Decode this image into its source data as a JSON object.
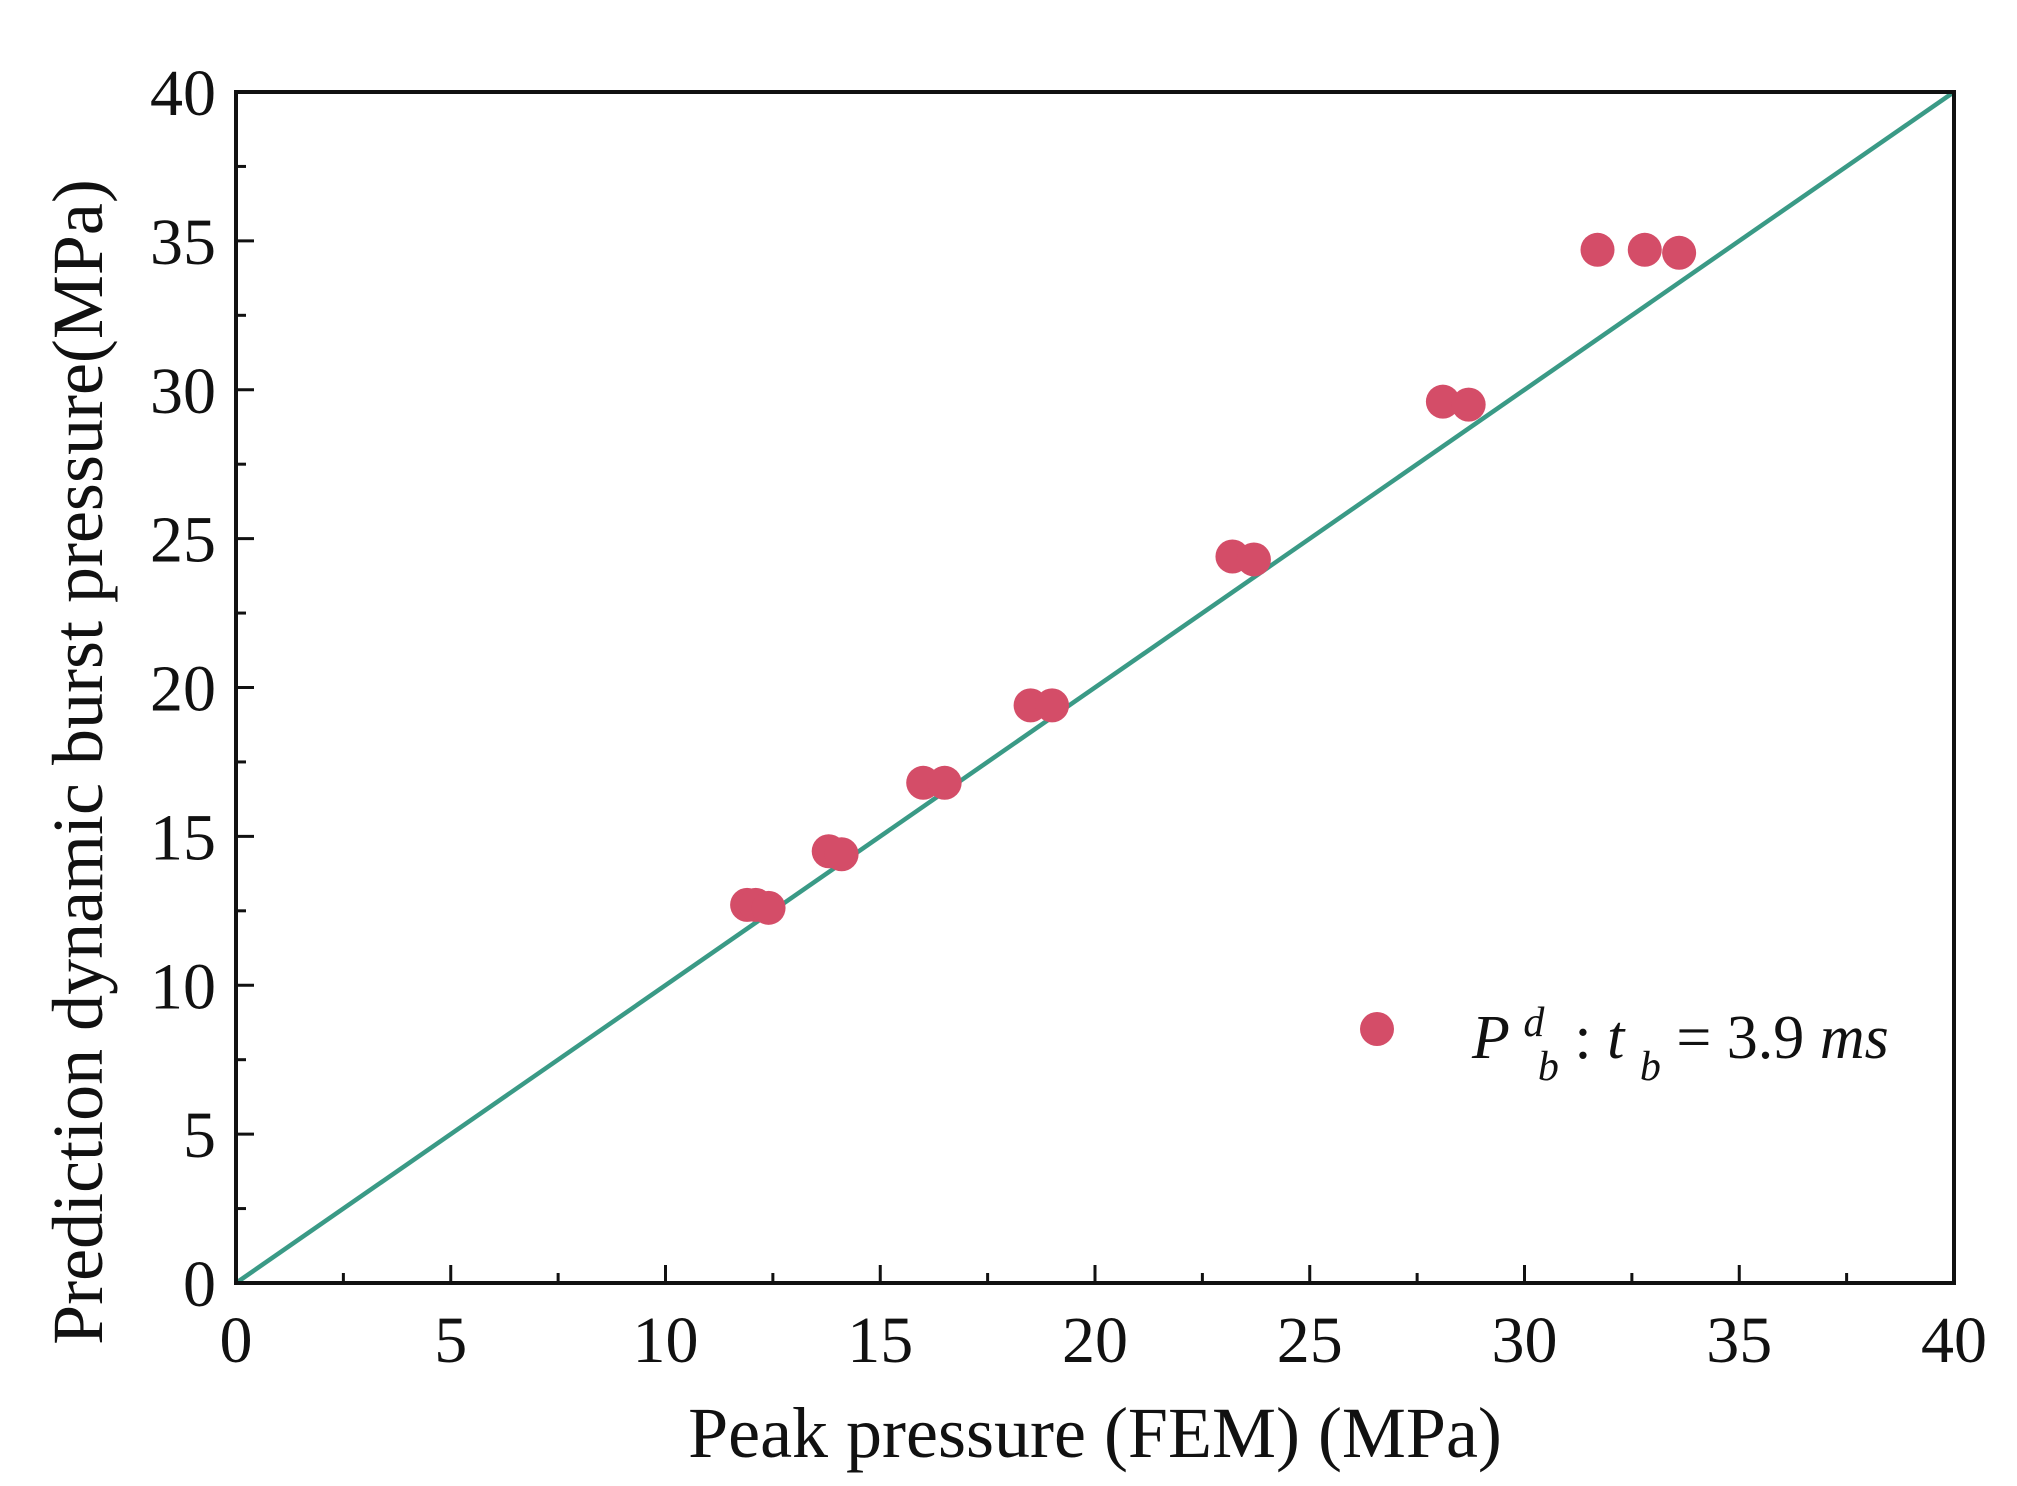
{
  "chart_data": {
    "type": "scatter",
    "title": "",
    "xlabel": "Peak pressure (FEM) (MPa)",
    "ylabel": "Prediction dynamic burst pressure(MPa)",
    "xlim": [
      0,
      40
    ],
    "ylim": [
      0,
      40
    ],
    "x_major_ticks": [
      0,
      5,
      10,
      15,
      20,
      25,
      30,
      35,
      40
    ],
    "x_tick_labels": [
      "0",
      "5",
      "10",
      "15",
      "20",
      "25",
      "30",
      "35",
      "40"
    ],
    "y_major_ticks": [
      0,
      5,
      10,
      15,
      20,
      25,
      30,
      35,
      40
    ],
    "y_tick_labels": [
      "0",
      "5",
      "10",
      "15",
      "20",
      "25",
      "30",
      "35",
      "40"
    ],
    "grid": false,
    "reference_line": {
      "name": "y = x",
      "x": [
        0,
        40
      ],
      "y": [
        0,
        40
      ],
      "color": "#3a9a86"
    },
    "series": [
      {
        "name": "P_b^d : t_b = 3.9ms",
        "color": "#d44d68",
        "points": [
          {
            "x": 11.9,
            "y": 12.7
          },
          {
            "x": 12.1,
            "y": 12.7
          },
          {
            "x": 12.4,
            "y": 12.6
          },
          {
            "x": 13.8,
            "y": 14.5
          },
          {
            "x": 14.1,
            "y": 14.4
          },
          {
            "x": 16.0,
            "y": 16.8
          },
          {
            "x": 16.5,
            "y": 16.8
          },
          {
            "x": 18.5,
            "y": 19.4
          },
          {
            "x": 19.0,
            "y": 19.4
          },
          {
            "x": 23.2,
            "y": 24.4
          },
          {
            "x": 23.7,
            "y": 24.3
          },
          {
            "x": 28.1,
            "y": 29.6
          },
          {
            "x": 28.7,
            "y": 29.5
          },
          {
            "x": 31.7,
            "y": 34.7
          },
          {
            "x": 32.8,
            "y": 34.7
          },
          {
            "x": 33.6,
            "y": 34.6
          }
        ]
      }
    ],
    "legend": {
      "position": "bottom-right",
      "main": "P",
      "sub1": "b",
      "sup1": "d",
      "mid": " : ",
      "var2": "t",
      "sub2": "b",
      "eq": " = 3.9",
      "unit": "ms"
    }
  }
}
